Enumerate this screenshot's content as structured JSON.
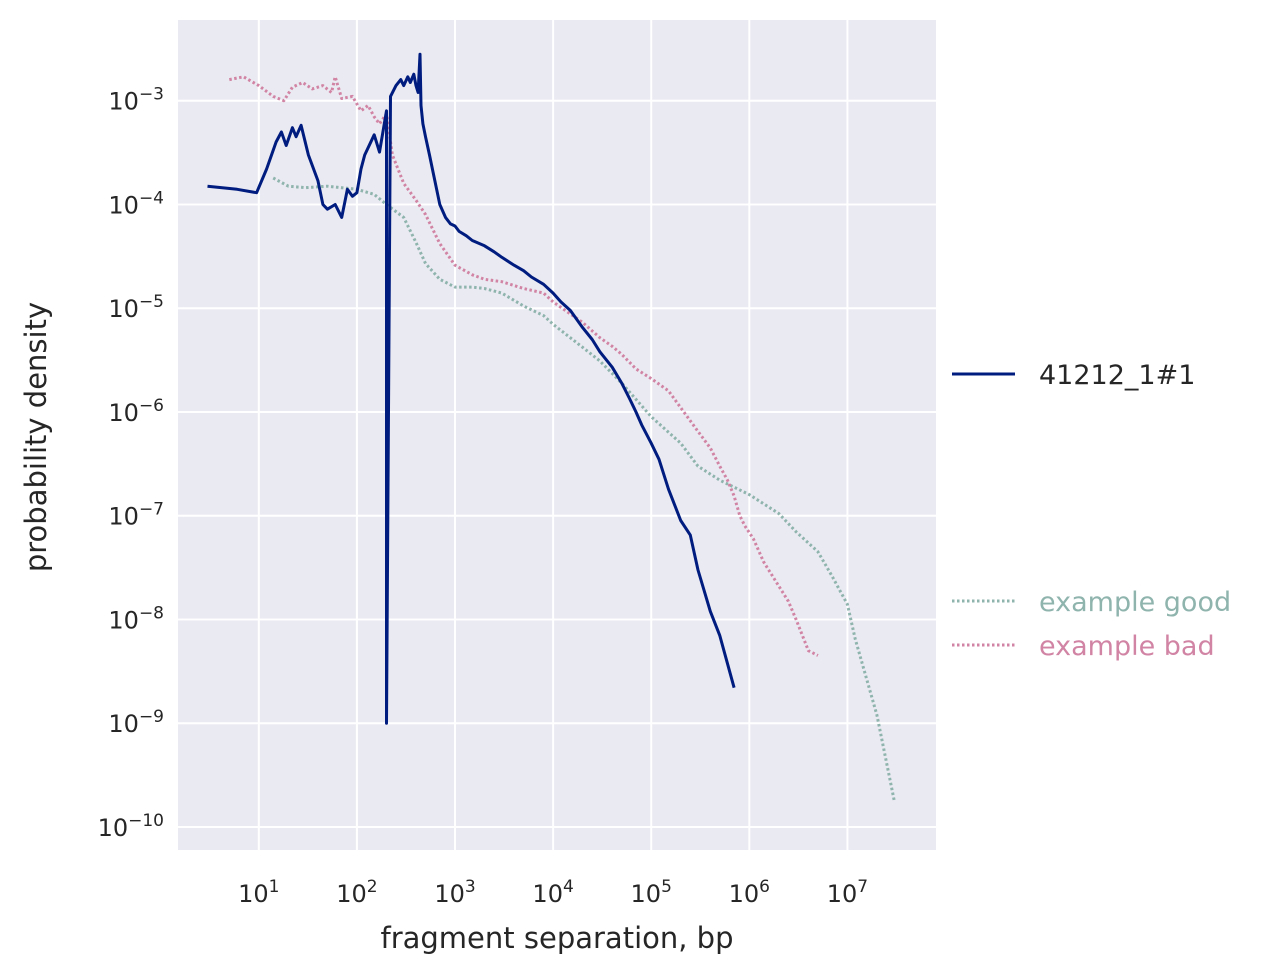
{
  "chart_data": {
    "type": "line",
    "xlabel": "fragment separation, bp",
    "ylabel": "probability density",
    "x_scale": "log",
    "y_scale": "log",
    "xlim": [
      1.5,
      80000000
    ],
    "ylim": [
      6e-11,
      0.006
    ],
    "grid": true,
    "background": "#eaeaf2",
    "legend_placement": "right",
    "x_ticks": [
      {
        "base": "10",
        "exp": "1",
        "value": 10
      },
      {
        "base": "10",
        "exp": "2",
        "value": 100
      },
      {
        "base": "10",
        "exp": "3",
        "value": 1000
      },
      {
        "base": "10",
        "exp": "4",
        "value": 10000
      },
      {
        "base": "10",
        "exp": "5",
        "value": 100000
      },
      {
        "base": "10",
        "exp": "6",
        "value": 1000000
      },
      {
        "base": "10",
        "exp": "7",
        "value": 10000000
      }
    ],
    "y_ticks": [
      {
        "base": "10",
        "exp": "−3",
        "value": 0.001
      },
      {
        "base": "10",
        "exp": "−4",
        "value": 0.0001
      },
      {
        "base": "10",
        "exp": "−5",
        "value": 1e-05
      },
      {
        "base": "10",
        "exp": "−6",
        "value": 1e-06
      },
      {
        "base": "10",
        "exp": "−7",
        "value": 1e-07
      },
      {
        "base": "10",
        "exp": "−8",
        "value": 1e-08
      },
      {
        "base": "10",
        "exp": "−9",
        "value": 1e-09
      },
      {
        "base": "10",
        "exp": "−10",
        "value": 1e-10
      }
    ],
    "series": [
      {
        "name": "example good",
        "style": "dotted",
        "color": "#8fb4ad",
        "x": [
          14,
          20,
          30,
          50,
          70,
          100,
          150,
          200,
          300,
          400,
          500,
          700,
          1000,
          1500,
          2000,
          3000,
          5000,
          8000,
          10000,
          20000,
          30000,
          50000,
          100000,
          200000,
          300000,
          500000,
          1000000,
          2000000,
          3000000,
          5000000,
          7000000,
          10000000,
          12000000,
          20000000,
          30000000
        ],
        "y": [
          0.00018,
          0.00015,
          0.000145,
          0.00015,
          0.000145,
          0.00014,
          0.000125,
          0.0001,
          7.5e-05,
          4.3e-05,
          2.7e-05,
          1.9e-05,
          1.6e-05,
          1.6e-05,
          1.55e-05,
          1.4e-05,
          1.05e-05,
          8.5e-06,
          7e-06,
          4.2e-06,
          3.1e-06,
          1.9e-06,
          9e-07,
          5e-07,
          3e-07,
          2.2e-07,
          1.6e-07,
          1.05e-07,
          7e-08,
          4.5e-08,
          2.6e-08,
          1.4e-08,
          6.5e-09,
          1.2e-09,
          1.8e-10
        ]
      },
      {
        "name": "example bad",
        "style": "dotted",
        "color": "#d184a4",
        "x": [
          5,
          7,
          10,
          14,
          18,
          22,
          28,
          35,
          45,
          55,
          60,
          70,
          90,
          110,
          130,
          150,
          170,
          200,
          230,
          300,
          400,
          500,
          700,
          1000,
          1500,
          2000,
          3000,
          5000,
          8000,
          10000,
          15000,
          20000,
          30000,
          40000,
          50000,
          70000,
          100000,
          150000,
          200000,
          300000,
          400000,
          500000,
          600000,
          700000,
          800000,
          900000,
          1100000,
          1400000,
          2000000,
          2500000,
          3000000,
          4000000,
          5000000
        ],
        "y": [
          0.0016,
          0.0017,
          0.0014,
          0.0011,
          0.001,
          0.00135,
          0.0015,
          0.0013,
          0.0014,
          0.0012,
          0.0017,
          0.00105,
          0.0011,
          0.0008,
          0.0009,
          0.0007,
          0.0006,
          0.00075,
          0.0003,
          0.00016,
          0.00011,
          8e-05,
          4.2e-05,
          2.6e-05,
          2.1e-05,
          1.9e-05,
          1.8e-05,
          1.55e-05,
          1.4e-05,
          1.15e-05,
          8.8e-06,
          7.3e-06,
          5.2e-06,
          4.3e-06,
          3.6e-06,
          2.6e-06,
          2.1e-06,
          1.6e-06,
          1.1e-06,
          6.5e-07,
          4.5e-07,
          3e-07,
          2.2e-07,
          1.55e-07,
          1e-07,
          8e-08,
          6e-08,
          3.6e-08,
          2.1e-08,
          1.5e-08,
          1e-08,
          5e-09,
          4.5e-09
        ]
      },
      {
        "name": "41212_1#1",
        "style": "solid",
        "color": "#001c7f",
        "x": [
          3,
          6,
          9.5,
          12,
          15,
          17,
          19,
          22,
          24,
          27,
          32,
          40,
          45,
          50,
          60,
          70,
          80,
          90,
          100,
          110,
          120,
          150,
          170,
          190,
          200,
          200,
          220,
          250,
          280,
          300,
          330,
          350,
          380,
          400,
          420,
          440,
          450,
          470,
          500,
          550,
          600,
          700,
          800,
          900,
          1000,
          1100,
          1300,
          1500,
          2000,
          2500,
          3000,
          4000,
          5000,
          6000,
          8000,
          10000,
          12000,
          15000,
          20000,
          25000,
          30000,
          40000,
          50000,
          60000,
          70000,
          80000,
          100000,
          120000,
          150000,
          200000,
          250000,
          300000,
          400000,
          500000,
          700000
        ],
        "y": [
          0.00015,
          0.00014,
          0.00013,
          0.00022,
          0.0004,
          0.0005,
          0.00037,
          0.00055,
          0.00045,
          0.00058,
          0.0003,
          0.00017,
          0.0001,
          9e-05,
          0.0001,
          7.5e-05,
          0.00014,
          0.00012,
          0.00013,
          0.00022,
          0.0003,
          0.00047,
          0.00032,
          0.0006,
          0.0008,
          1e-09,
          0.0011,
          0.0014,
          0.0016,
          0.0014,
          0.0017,
          0.0015,
          0.0018,
          0.0014,
          0.0012,
          0.0028,
          0.0009,
          0.0006,
          0.00045,
          0.0003,
          0.0002,
          0.0001,
          7.5e-05,
          6.5e-05,
          6.2e-05,
          5.5e-05,
          5e-05,
          4.5e-05,
          4e-05,
          3.5e-05,
          3.1e-05,
          2.6e-05,
          2.3e-05,
          2e-05,
          1.7e-05,
          1.4e-05,
          1.15e-05,
          9.5e-06,
          6.5e-06,
          5e-06,
          3.8e-06,
          2.7e-06,
          1.9e-06,
          1.35e-06,
          1e-06,
          7.5e-07,
          5e-07,
          3.5e-07,
          1.8e-07,
          9e-08,
          6.5e-08,
          3e-08,
          1.2e-08,
          7e-09,
          2.2e-09
        ]
      }
    ],
    "legend": [
      {
        "label": "41212_1#1",
        "style": "solid",
        "color": "#001c7f",
        "text_color": "#262626"
      },
      {
        "label": "example good",
        "style": "dotted",
        "color": "#8fb4ad",
        "text_color": "#8fb4ad"
      },
      {
        "label": "example bad",
        "style": "dotted",
        "color": "#d184a4",
        "text_color": "#d184a4"
      }
    ]
  }
}
